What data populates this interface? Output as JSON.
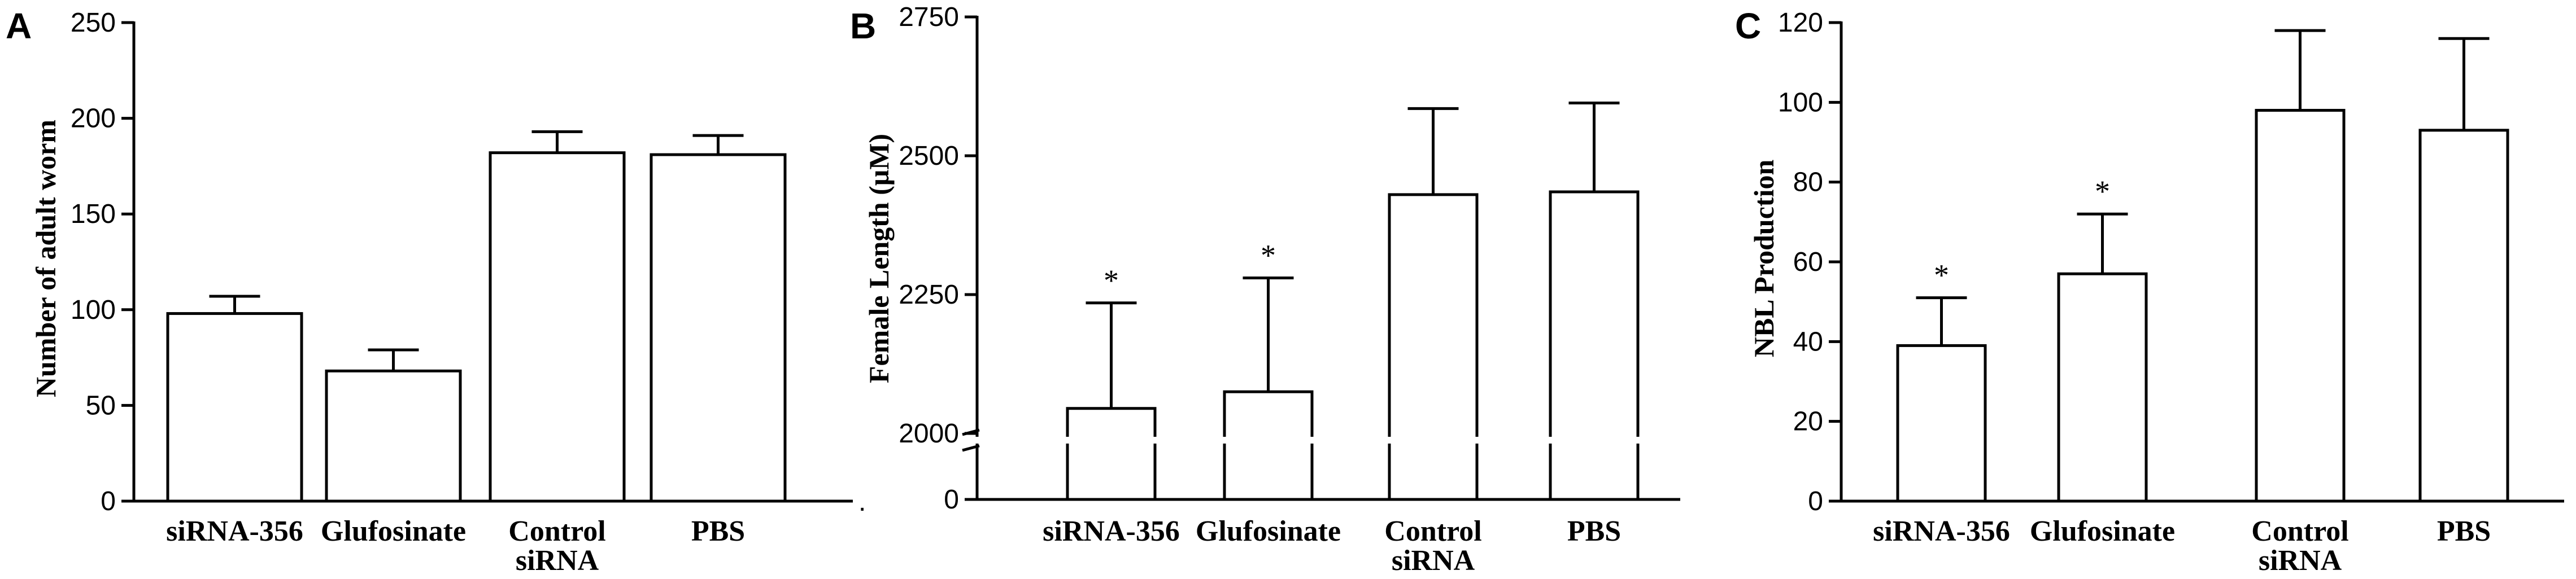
{
  "chart_data": [
    {
      "type": "bar",
      "panel": "A",
      "ylabel": "Number of adult worm",
      "ylim": [
        0,
        250
      ],
      "yticks": [
        0,
        50,
        100,
        150,
        200,
        250
      ],
      "categories": [
        [
          "siRNA-356"
        ],
        [
          "Glufosinate"
        ],
        [
          "Control",
          "siRNA"
        ],
        [
          "PBS"
        ]
      ],
      "values": [
        98,
        68,
        182,
        181
      ],
      "errors": [
        9,
        11,
        11,
        10
      ],
      "significance": [
        "",
        "",
        "",
        ""
      ],
      "grid": false,
      "legend": "none"
    },
    {
      "type": "bar",
      "panel": "B",
      "ylabel": "Female Length (μM)",
      "ylim": [
        0,
        2750
      ],
      "axis_break": [
        0,
        2000
      ],
      "yticks": [
        0,
        2000,
        2250,
        2500,
        2750
      ],
      "categories": [
        [
          "siRNA-356"
        ],
        [
          "Glufosinate"
        ],
        [
          "Control",
          "siRNA"
        ],
        [
          "PBS"
        ]
      ],
      "values": [
        2045,
        2075,
        2430,
        2435
      ],
      "errors": [
        190,
        205,
        155,
        160
      ],
      "significance": [
        "*",
        "*",
        "",
        ""
      ],
      "grid": false,
      "legend": "none"
    },
    {
      "type": "bar",
      "panel": "C",
      "ylabel": "NBL  Production",
      "ylim": [
        0,
        120
      ],
      "yticks": [
        0,
        20,
        40,
        60,
        80,
        100,
        120
      ],
      "categories": [
        [
          "siRNA-356"
        ],
        [
          "Glufosinate"
        ],
        [
          "Control",
          "siRNA"
        ],
        [
          "PBS"
        ]
      ],
      "values": [
        39,
        57,
        98,
        93
      ],
      "errors": [
        12,
        15,
        20,
        23
      ],
      "significance": [
        "*",
        "*",
        "",
        ""
      ],
      "grid": false,
      "legend": "none"
    }
  ],
  "extra_marks": {
    "A": "."
  }
}
